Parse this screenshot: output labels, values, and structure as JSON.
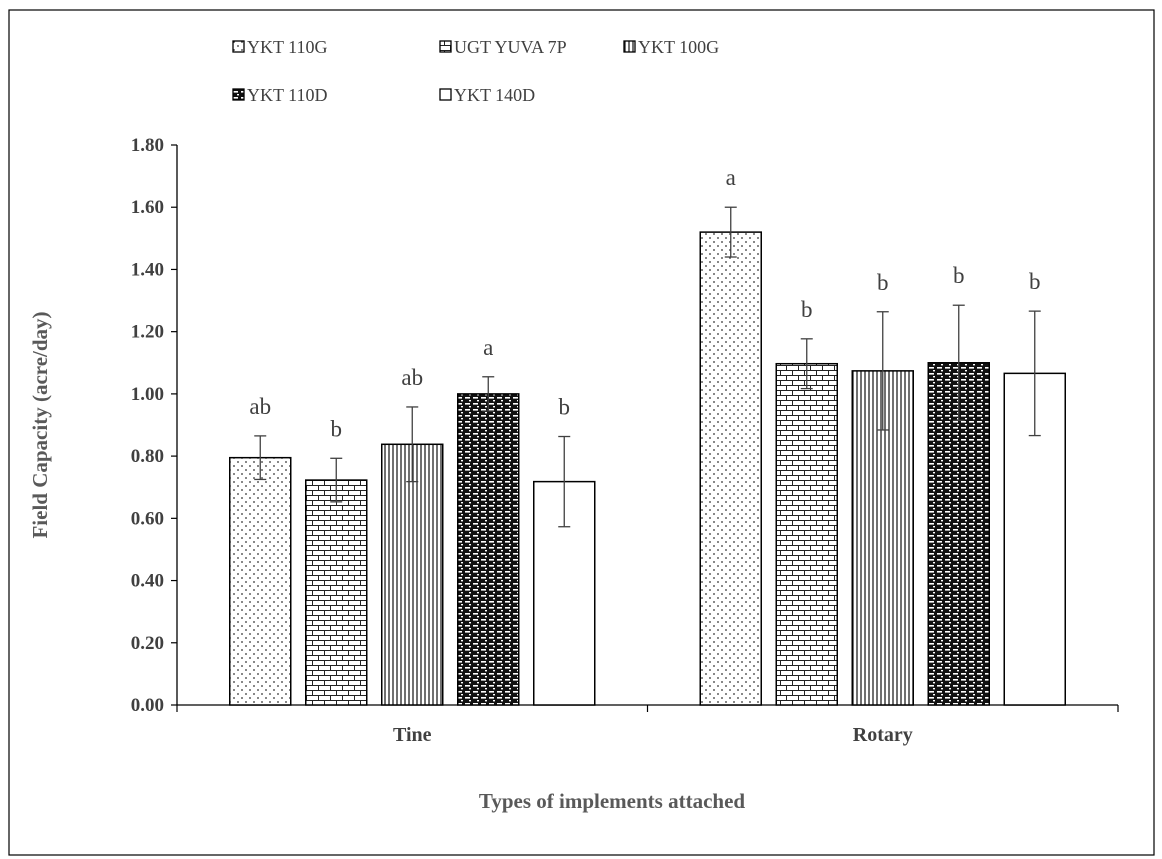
{
  "chart_data": {
    "type": "bar",
    "title": "",
    "xlabel": "Types of implements attached",
    "ylabel": "Field Capacity (acre/day)",
    "ylim": [
      0,
      1.8
    ],
    "yticks": [
      "0.00",
      "0.20",
      "0.40",
      "0.60",
      "0.80",
      "1.00",
      "1.20",
      "1.40",
      "1.60",
      "1.80"
    ],
    "categories": [
      "Tine",
      "Rotary"
    ],
    "legend_position": "top",
    "grid": false,
    "series": [
      {
        "name": "YKT 110G",
        "pattern": "dots",
        "values": [
          0.795,
          1.52
        ],
        "errors": [
          0.07,
          0.08
        ],
        "sig_labels": [
          "ab",
          "a"
        ]
      },
      {
        "name": "UGT YUVA 7P",
        "pattern": "bricks",
        "values": [
          0.723,
          1.097
        ],
        "errors": [
          0.07,
          0.08
        ],
        "sig_labels": [
          "b",
          "b"
        ]
      },
      {
        "name": "YKT 100G",
        "pattern": "vlines",
        "values": [
          0.838,
          1.074
        ],
        "errors": [
          0.12,
          0.19
        ],
        "sig_labels": [
          "ab",
          "b"
        ]
      },
      {
        "name": "YKT 110D",
        "pattern": "dense",
        "values": [
          1.0,
          1.1
        ],
        "errors": [
          0.055,
          0.185
        ],
        "sig_labels": [
          "a",
          "b"
        ]
      },
      {
        "name": "YKT 140D",
        "pattern": "solid",
        "values": [
          0.718,
          1.066
        ],
        "errors": [
          0.145,
          0.2
        ],
        "sig_labels": [
          "b",
          "b"
        ]
      }
    ]
  }
}
